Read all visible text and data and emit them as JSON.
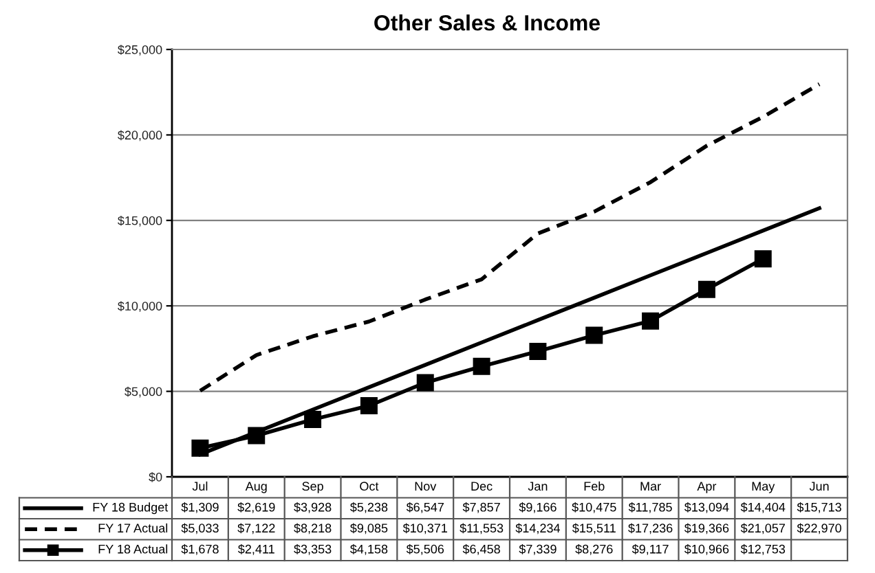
{
  "chart_data": {
    "type": "line",
    "title": "Other Sales & Income",
    "categories": [
      "Jul",
      "Aug",
      "Sep",
      "Oct",
      "Nov",
      "Dec",
      "Jan",
      "Feb",
      "Mar",
      "Apr",
      "May",
      "Jun"
    ],
    "series": [
      {
        "name": "FY 18 Budget",
        "color": "#000000",
        "line_style": "solid",
        "marker": "none",
        "values": [
          1309,
          2619,
          3928,
          5238,
          6547,
          7857,
          9166,
          10475,
          11785,
          13094,
          14404,
          15713
        ],
        "value_labels": [
          "$1,309",
          "$2,619",
          "$3,928",
          "$5,238",
          "$6,547",
          "$7,857",
          "$9,166",
          "$10,475",
          "$11,785",
          "$13,094",
          "$14,404",
          "$15,713"
        ]
      },
      {
        "name": "FY 17 Actual",
        "color": "#000000",
        "line_style": "dashed",
        "marker": "none",
        "values": [
          5033,
          7122,
          8218,
          9085,
          10371,
          11553,
          14234,
          15511,
          17236,
          19366,
          21057,
          22970
        ],
        "value_labels": [
          "$5,033",
          "$7,122",
          "$8,218",
          "$9,085",
          "$10,371",
          "$11,553",
          "$14,234",
          "$15,511",
          "$17,236",
          "$19,366",
          "$21,057",
          "$22,970"
        ]
      },
      {
        "name": "FY 18 Actual",
        "color": "#000000",
        "line_style": "solid",
        "marker": "square",
        "values": [
          1678,
          2411,
          3353,
          4158,
          5506,
          6458,
          7339,
          8276,
          9117,
          10966,
          12753,
          null
        ],
        "value_labels": [
          "$1,678",
          "$2,411",
          "$3,353",
          "$4,158",
          "$5,506",
          "$6,458",
          "$7,339",
          "$8,276",
          "$9,117",
          "$10,966",
          "$12,753",
          null
        ]
      }
    ],
    "ylim": [
      0,
      25000
    ],
    "yticks": [
      {
        "value": 0,
        "label": "$0"
      },
      {
        "value": 5000,
        "label": "$5,000"
      },
      {
        "value": 10000,
        "label": "$10,000"
      },
      {
        "value": 15000,
        "label": "$15,000"
      },
      {
        "value": 20000,
        "label": "$20,000"
      },
      {
        "value": 25000,
        "label": "$25,000"
      }
    ],
    "grid": "y",
    "legend": "bottom"
  }
}
